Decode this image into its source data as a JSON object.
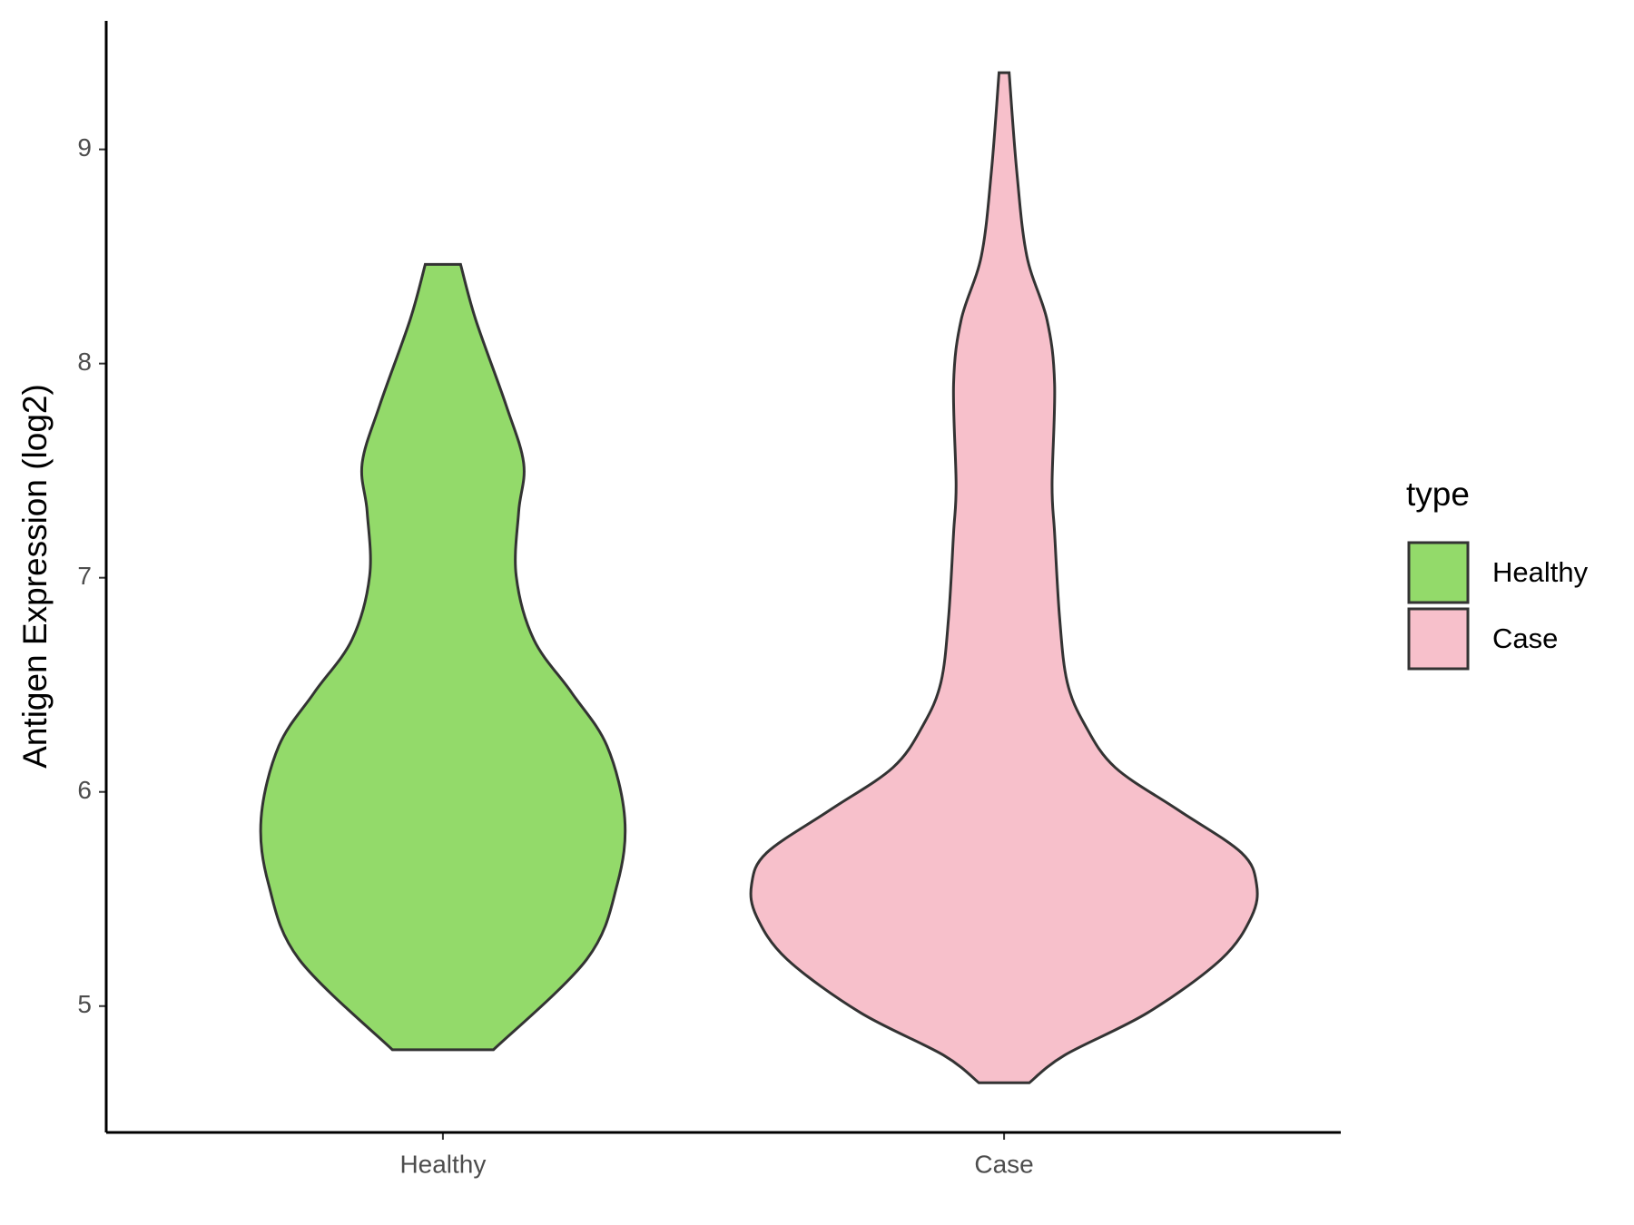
{
  "chart_data": {
    "type": "violin",
    "ylabel": "Antigen Expression (log2)",
    "categories": [
      "Healthy",
      "Case"
    ],
    "legend_title": "type",
    "legend": "right",
    "grid": false,
    "ylim": [
      4.41,
      9.6
    ],
    "yticks": [
      5,
      6,
      7,
      8,
      9
    ],
    "series": [
      {
        "name": "Healthy",
        "color": "#93DA6A",
        "y": [
          4.796,
          5.219,
          5.567,
          5.876,
          6.214,
          6.463,
          6.711,
          7.01,
          7.308,
          7.532,
          7.806,
          8.204,
          8.463
        ],
        "density": [
          0.2,
          0.57,
          0.69,
          0.72,
          0.65,
          0.51,
          0.36,
          0.29,
          0.3,
          0.32,
          0.25,
          0.13,
          0.07
        ]
      },
      {
        "name": "Case",
        "color": "#F7C0CB",
        "y": [
          4.642,
          4.771,
          4.97,
          5.219,
          5.418,
          5.567,
          5.716,
          5.915,
          6.114,
          6.313,
          6.512,
          6.811,
          7.209,
          7.433,
          7.905,
          8.204,
          8.502,
          8.9,
          9.358
        ],
        "density": [
          0.1,
          0.24,
          0.57,
          0.86,
          0.98,
          1.0,
          0.94,
          0.69,
          0.44,
          0.32,
          0.25,
          0.22,
          0.2,
          0.19,
          0.2,
          0.17,
          0.09,
          0.05,
          0.02
        ]
      }
    ]
  }
}
